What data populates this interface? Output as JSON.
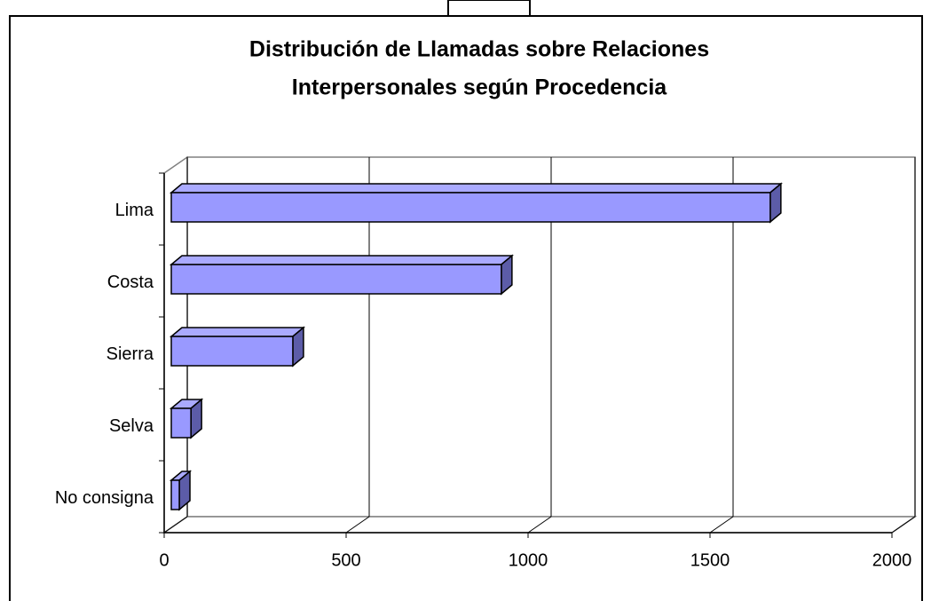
{
  "chart_data": {
    "type": "bar3d_horizontal",
    "title": [
      "Distribución de Llamadas sobre Relaciones",
      "Interpersonales según Procedencia"
    ],
    "categories": [
      "Lima",
      "Costa",
      "Sierra",
      "Selva",
      "No consigna"
    ],
    "values": [
      1646,
      907,
      334,
      54,
      22
    ],
    "color": "#9999ff",
    "xlim": [
      0,
      2000
    ],
    "xticks": [
      0,
      500,
      1000,
      1500,
      2000
    ],
    "grid": true
  }
}
